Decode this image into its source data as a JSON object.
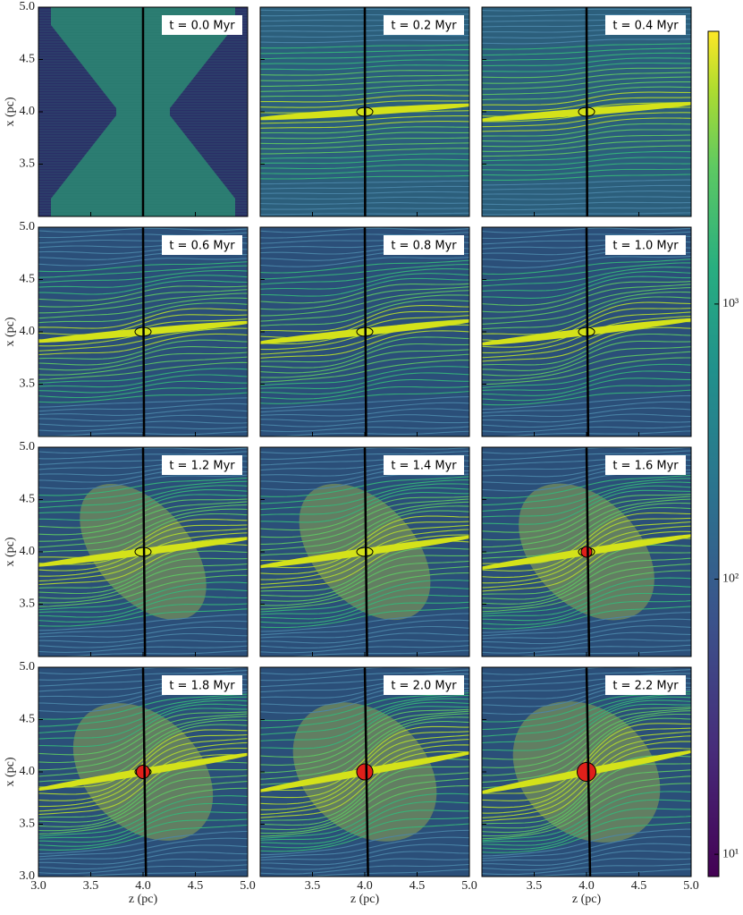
{
  "chart_data": {
    "type": "streamplot",
    "panels": [
      {
        "title": "t = 0.0 Myr"
      },
      {
        "title": "t = 0.2 Myr"
      },
      {
        "title": "t = 0.4 Myr"
      },
      {
        "title": "t = 0.6 Myr"
      },
      {
        "title": "t = 0.8 Myr"
      },
      {
        "title": "t = 1.0 Myr"
      },
      {
        "title": "t = 1.2 Myr"
      },
      {
        "title": "t = 1.4 Myr"
      },
      {
        "title": "t = 1.6 Myr"
      },
      {
        "title": "t = 1.8 Myr"
      },
      {
        "title": "t = 2.0 Myr"
      },
      {
        "title": "t = 2.2 Myr"
      }
    ],
    "xlabel": "z (pc)",
    "ylabel": "x (pc)",
    "xlim": [
      3.0,
      5.0
    ],
    "ylim": [
      3.0,
      5.0
    ],
    "xticks": [
      {
        "value": 3.0,
        "label": "3.0"
      },
      3.5,
      {
        "value": 4.0,
        "label": "4.0"
      },
      4.5,
      {
        "value": 5.0,
        "label": "5.0"
      }
    ],
    "yticks": [
      {
        "value": 3.0,
        "label": "3.0"
      },
      3.5,
      {
        "value": 4.0,
        "label": "4.0"
      },
      4.5,
      {
        "value": 5.0,
        "label": "5.0"
      }
    ],
    "colorbar": {
      "scale": "log",
      "lim": [
        8.3,
        9800
      ],
      "ticks": [
        {
          "value": 10,
          "label": "10¹"
        },
        {
          "value": 100,
          "label": "10²"
        },
        {
          "value": 1000,
          "label": "10³"
        }
      ]
    }
  }
}
